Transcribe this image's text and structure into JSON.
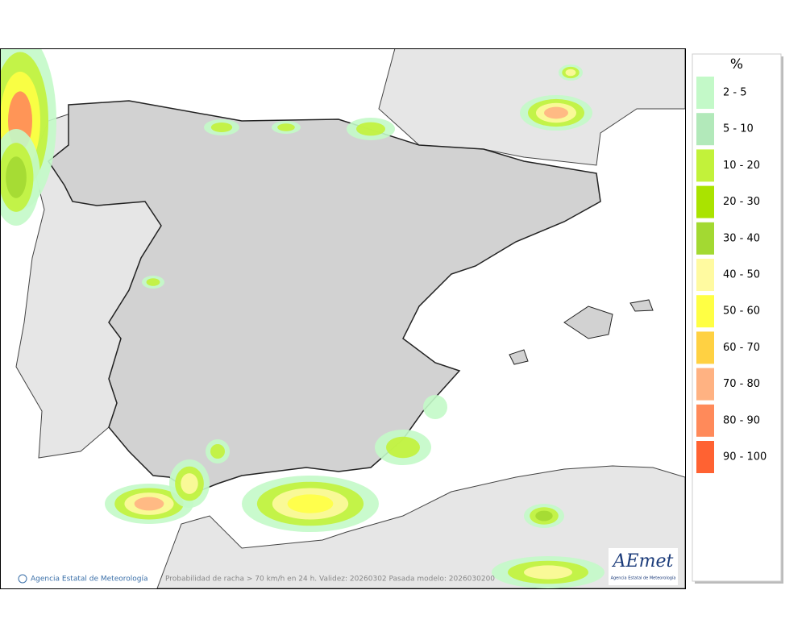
{
  "map": {
    "caption": "Probabilidad de racha > 70 km/h en 24 h. Validez: 20260302 Pasada modelo: 2026030200",
    "credit": "Agencia Estatal de Meteorología",
    "logo": {
      "name": "AEmet",
      "subtitle": "Agencia Estatal de Meteorología"
    }
  },
  "legend": {
    "title": "%",
    "entries": [
      {
        "label": "2 - 5",
        "color": "#c3f9c8"
      },
      {
        "label": "5 - 10",
        "color": "#b2e9ba"
      },
      {
        "label": "10 - 20",
        "color": "#c2f23a"
      },
      {
        "label": "20 - 30",
        "color": "#aae300"
      },
      {
        "label": "30 - 40",
        "color": "#a3d932"
      },
      {
        "label": "40 - 50",
        "color": "#fffaa0"
      },
      {
        "label": "50 - 60",
        "color": "#ffff44"
      },
      {
        "label": "60 - 70",
        "color": "#ffd142"
      },
      {
        "label": "70 - 80",
        "color": "#ffb282"
      },
      {
        "label": "80 - 90",
        "color": "#ff8a5a"
      },
      {
        "label": "90 - 100",
        "color": "#ff6232"
      }
    ]
  }
}
